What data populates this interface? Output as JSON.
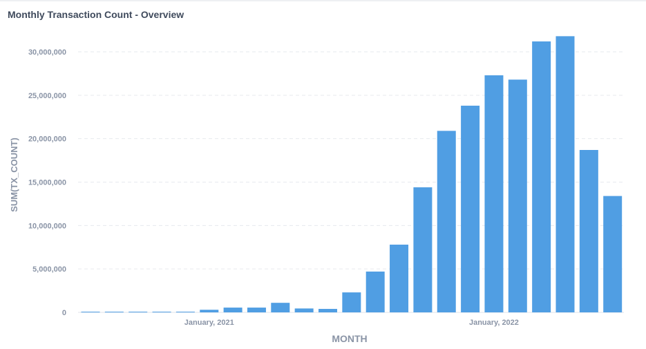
{
  "title": "Monthly Transaction Count - Overview",
  "colors": {
    "bar": "#509ee3",
    "grid": "#e6e9ee",
    "axis": "#dfe3e8",
    "text": "#8a94a6"
  },
  "chart_data": {
    "type": "bar",
    "title": "Monthly Transaction Count - Overview",
    "xlabel": "MONTH",
    "ylabel": "SUM(TX_COUNT)",
    "ylim": [
      0,
      30000000
    ],
    "yticks": [
      0,
      5000000,
      10000000,
      15000000,
      20000000,
      25000000,
      30000000
    ],
    "ytick_labels": [
      "0",
      "5,000,000",
      "10,000,000",
      "15,000,000",
      "20,000,000",
      "25,000,000",
      "30,000,000"
    ],
    "xtick_labels": [
      {
        "label": "January, 2021",
        "category": "2021-01"
      },
      {
        "label": "January, 2022",
        "category": "2022-01"
      }
    ],
    "categories": [
      "2020-08",
      "2020-09",
      "2020-10",
      "2020-11",
      "2020-12",
      "2021-01",
      "2021-02",
      "2021-03",
      "2021-04",
      "2021-05",
      "2021-06",
      "2021-07",
      "2021-08",
      "2021-09",
      "2021-10",
      "2021-11",
      "2021-12",
      "2022-01",
      "2022-02",
      "2022-03",
      "2022-04",
      "2022-05",
      "2022-06",
      "2022-07"
    ],
    "values": [
      80000,
      80000,
      80000,
      80000,
      80000,
      300000,
      550000,
      550000,
      1100000,
      450000,
      400000,
      2300000,
      4700000,
      7800000,
      14400000,
      20900000,
      23800000,
      27300000,
      26800000,
      31200000,
      31800000,
      18700000,
      13400000,
      0
    ],
    "grid": true,
    "legend": "none"
  }
}
